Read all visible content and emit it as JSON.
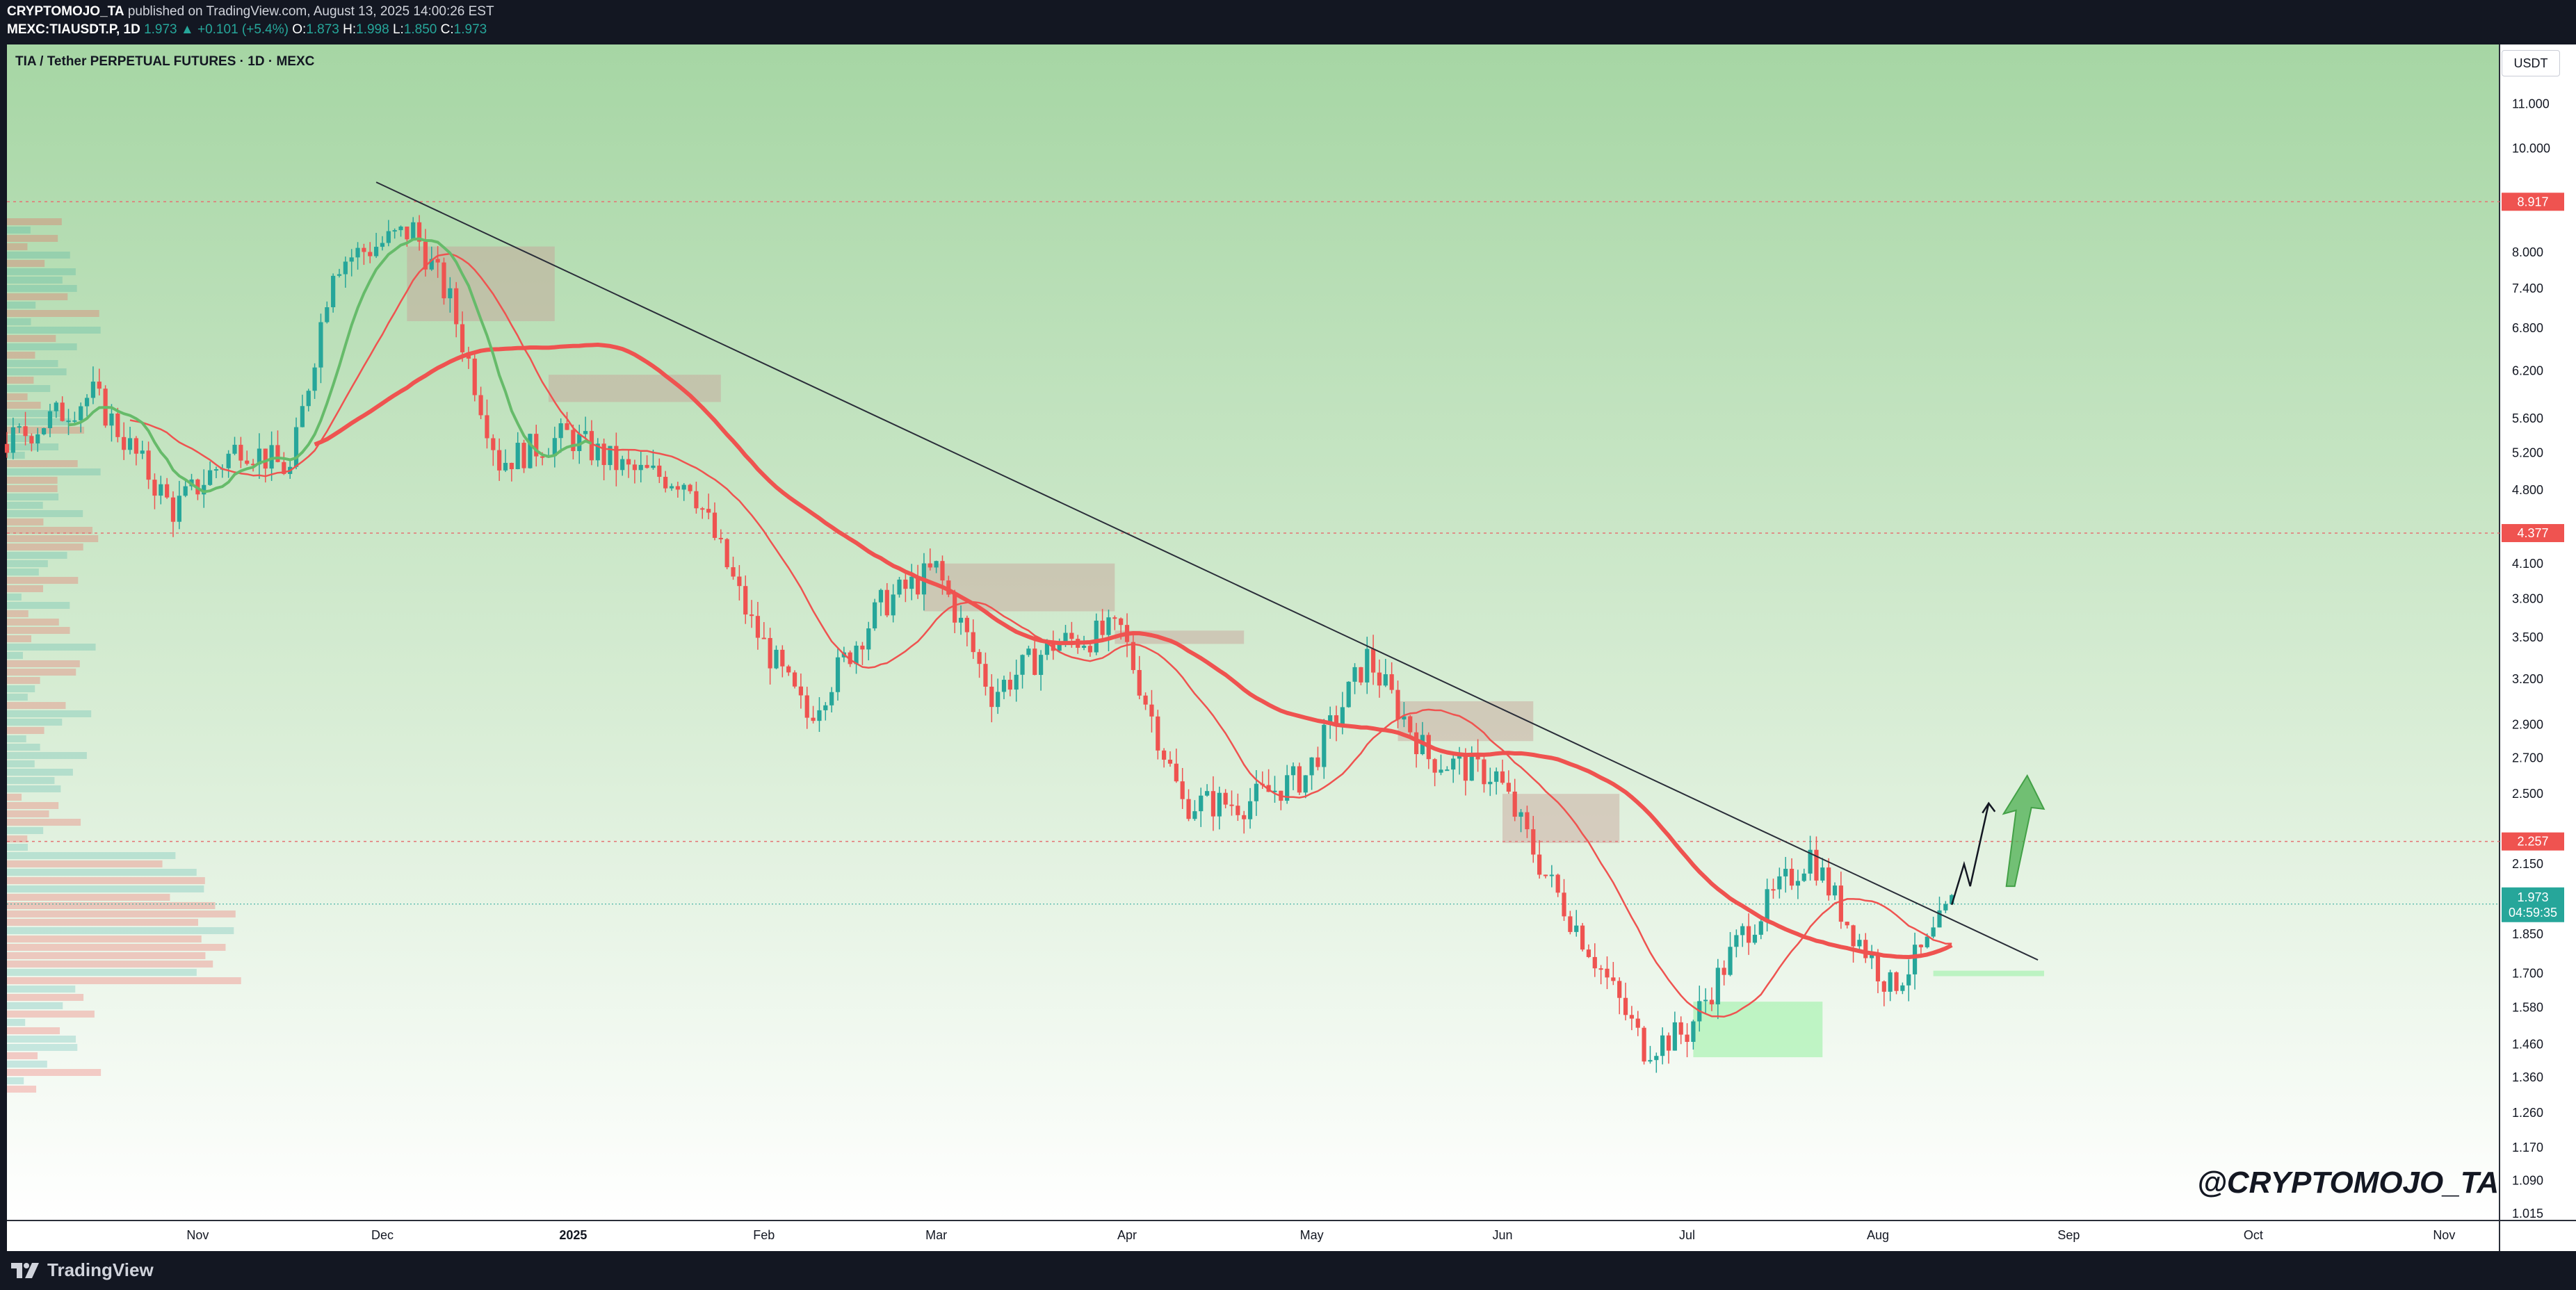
{
  "header": {
    "author": "CRYPTOMOJO_TA",
    "published": "published on TradingView.com, August 13, 2025 14:00:26 EST",
    "symbol": "MEXC:TIAUSDT.P, 1D",
    "last": "1.973",
    "change": "▲ +0.101 (+5.4%)",
    "o_label": "O:",
    "o": "1.873",
    "h_label": "H:",
    "h": "1.998",
    "l_label": "L:",
    "l": "1.850",
    "c_label": "C:",
    "c": "1.973"
  },
  "chart_title": "TIA / Tether PERPETUAL FUTURES · 1D · MEXC",
  "currency": "USDT",
  "watermark": "@CRYPTOMOJO_TA",
  "brand": "TradingView",
  "colors": {
    "up": "#26a69a",
    "down": "#ef5350",
    "bg_top": "#a6d6a4",
    "bg_bottom": "#ffffff",
    "ma_slow": "#ef5350",
    "ma_fast": "#ef5350",
    "ma_green": "#66bb6a",
    "level_line": "#e57373",
    "arrow": "#66bb6a"
  },
  "chart_data": {
    "type": "candlestick",
    "y_scale": "log",
    "ylim": [
      1.0,
      12.5
    ],
    "y_ticks": [
      "11.000",
      "10.000",
      "8.000",
      "7.400",
      "6.800",
      "6.200",
      "5.600",
      "5.200",
      "4.800",
      "4.100",
      "3.800",
      "3.500",
      "3.200",
      "2.900",
      "2.700",
      "2.500",
      "2.150",
      "1.850",
      "1.700",
      "1.580",
      "1.460",
      "1.360",
      "1.260",
      "1.170",
      "1.090",
      "1.015"
    ],
    "x_ticks": [
      {
        "date": "2024-11-01",
        "label": "Nov"
      },
      {
        "date": "2024-12-01",
        "label": "Dec"
      },
      {
        "date": "2025-01-01",
        "label": "2025"
      },
      {
        "date": "2025-02-01",
        "label": "Feb"
      },
      {
        "date": "2025-03-01",
        "label": "Mar"
      },
      {
        "date": "2025-04-01",
        "label": "Apr"
      },
      {
        "date": "2025-05-01",
        "label": "May"
      },
      {
        "date": "2025-06-01",
        "label": "Jun"
      },
      {
        "date": "2025-07-01",
        "label": "Jul"
      },
      {
        "date": "2025-08-01",
        "label": "Aug"
      },
      {
        "date": "2025-09-01",
        "label": "Sep"
      },
      {
        "date": "2025-10-01",
        "label": "Oct"
      },
      {
        "date": "2025-11-01",
        "label": "Nov"
      }
    ],
    "levels": [
      {
        "price": 8.917,
        "label": "8.917"
      },
      {
        "price": 4.377,
        "label": "4.377"
      },
      {
        "price": 2.257,
        "label": "2.257"
      }
    ],
    "last_price": {
      "price": 1.973,
      "label": "1.973",
      "countdown": "04:59:35"
    },
    "trendline": [
      {
        "date": "2024-11-30",
        "price": 9.3
      },
      {
        "date": "2025-08-27",
        "price": 1.75
      }
    ],
    "path_points": [
      {
        "date": "2024-10-01",
        "price": 5.3
      },
      {
        "date": "2024-10-15",
        "price": 5.9
      },
      {
        "date": "2024-10-28",
        "price": 4.6
      },
      {
        "date": "2024-11-08",
        "price": 5.3
      },
      {
        "date": "2024-11-16",
        "price": 5.0
      },
      {
        "date": "2024-11-23",
        "price": 7.8
      },
      {
        "date": "2024-12-06",
        "price": 8.4
      },
      {
        "date": "2024-12-12",
        "price": 7.2
      },
      {
        "date": "2024-12-20",
        "price": 5.1
      },
      {
        "date": "2024-12-31",
        "price": 5.4
      },
      {
        "date": "2025-01-10",
        "price": 5.0
      },
      {
        "date": "2025-01-20",
        "price": 4.9
      },
      {
        "date": "2025-01-30",
        "price": 3.6
      },
      {
        "date": "2025-02-08",
        "price": 2.95
      },
      {
        "date": "2025-02-20",
        "price": 3.75
      },
      {
        "date": "2025-03-01",
        "price": 4.05
      },
      {
        "date": "2025-03-10",
        "price": 3.1
      },
      {
        "date": "2025-03-20",
        "price": 3.45
      },
      {
        "date": "2025-03-31",
        "price": 3.55
      },
      {
        "date": "2025-04-10",
        "price": 2.45
      },
      {
        "date": "2025-04-20",
        "price": 2.45
      },
      {
        "date": "2025-04-30",
        "price": 2.6
      },
      {
        "date": "2025-05-10",
        "price": 3.35
      },
      {
        "date": "2025-05-20",
        "price": 2.7
      },
      {
        "date": "2025-05-31",
        "price": 2.6
      },
      {
        "date": "2025-06-08",
        "price": 2.1
      },
      {
        "date": "2025-06-15",
        "price": 1.8
      },
      {
        "date": "2025-06-24",
        "price": 1.45
      },
      {
        "date": "2025-07-01",
        "price": 1.5
      },
      {
        "date": "2025-07-10",
        "price": 1.85
      },
      {
        "date": "2025-07-21",
        "price": 2.2
      },
      {
        "date": "2025-07-27",
        "price": 1.9
      },
      {
        "date": "2025-08-03",
        "price": 1.65
      },
      {
        "date": "2025-08-09",
        "price": 1.8
      },
      {
        "date": "2025-08-13",
        "price": 1.973
      }
    ],
    "projection": [
      {
        "date": "2025-08-13",
        "price": 1.97
      },
      {
        "date": "2025-08-15",
        "price": 2.15
      },
      {
        "date": "2025-08-16",
        "price": 2.05
      },
      {
        "date": "2025-08-19",
        "price": 2.45
      }
    ],
    "zones": [
      {
        "from": "2024-12-05",
        "to": "2024-12-29",
        "low": 6.9,
        "high": 8.1,
        "kind": "supply"
      },
      {
        "from": "2024-12-28",
        "to": "2025-01-25",
        "low": 5.8,
        "high": 6.15,
        "kind": "supply"
      },
      {
        "from": "2025-02-27",
        "to": "2025-03-30",
        "low": 3.7,
        "high": 4.1,
        "kind": "supply"
      },
      {
        "from": "2025-03-30",
        "to": "2025-04-20",
        "low": 3.45,
        "high": 3.55,
        "kind": "supply"
      },
      {
        "from": "2025-05-15",
        "to": "2025-06-06",
        "low": 2.8,
        "high": 3.05,
        "kind": "supply"
      },
      {
        "from": "2025-06-01",
        "to": "2025-06-20",
        "low": 2.25,
        "high": 2.5,
        "kind": "supply"
      },
      {
        "from": "2025-07-02",
        "to": "2025-07-23",
        "low": 1.42,
        "high": 1.6,
        "kind": "demand"
      },
      {
        "from": "2025-08-10",
        "to": "2025-08-28",
        "low": 1.69,
        "high": 1.71,
        "kind": "demand"
      }
    ]
  }
}
